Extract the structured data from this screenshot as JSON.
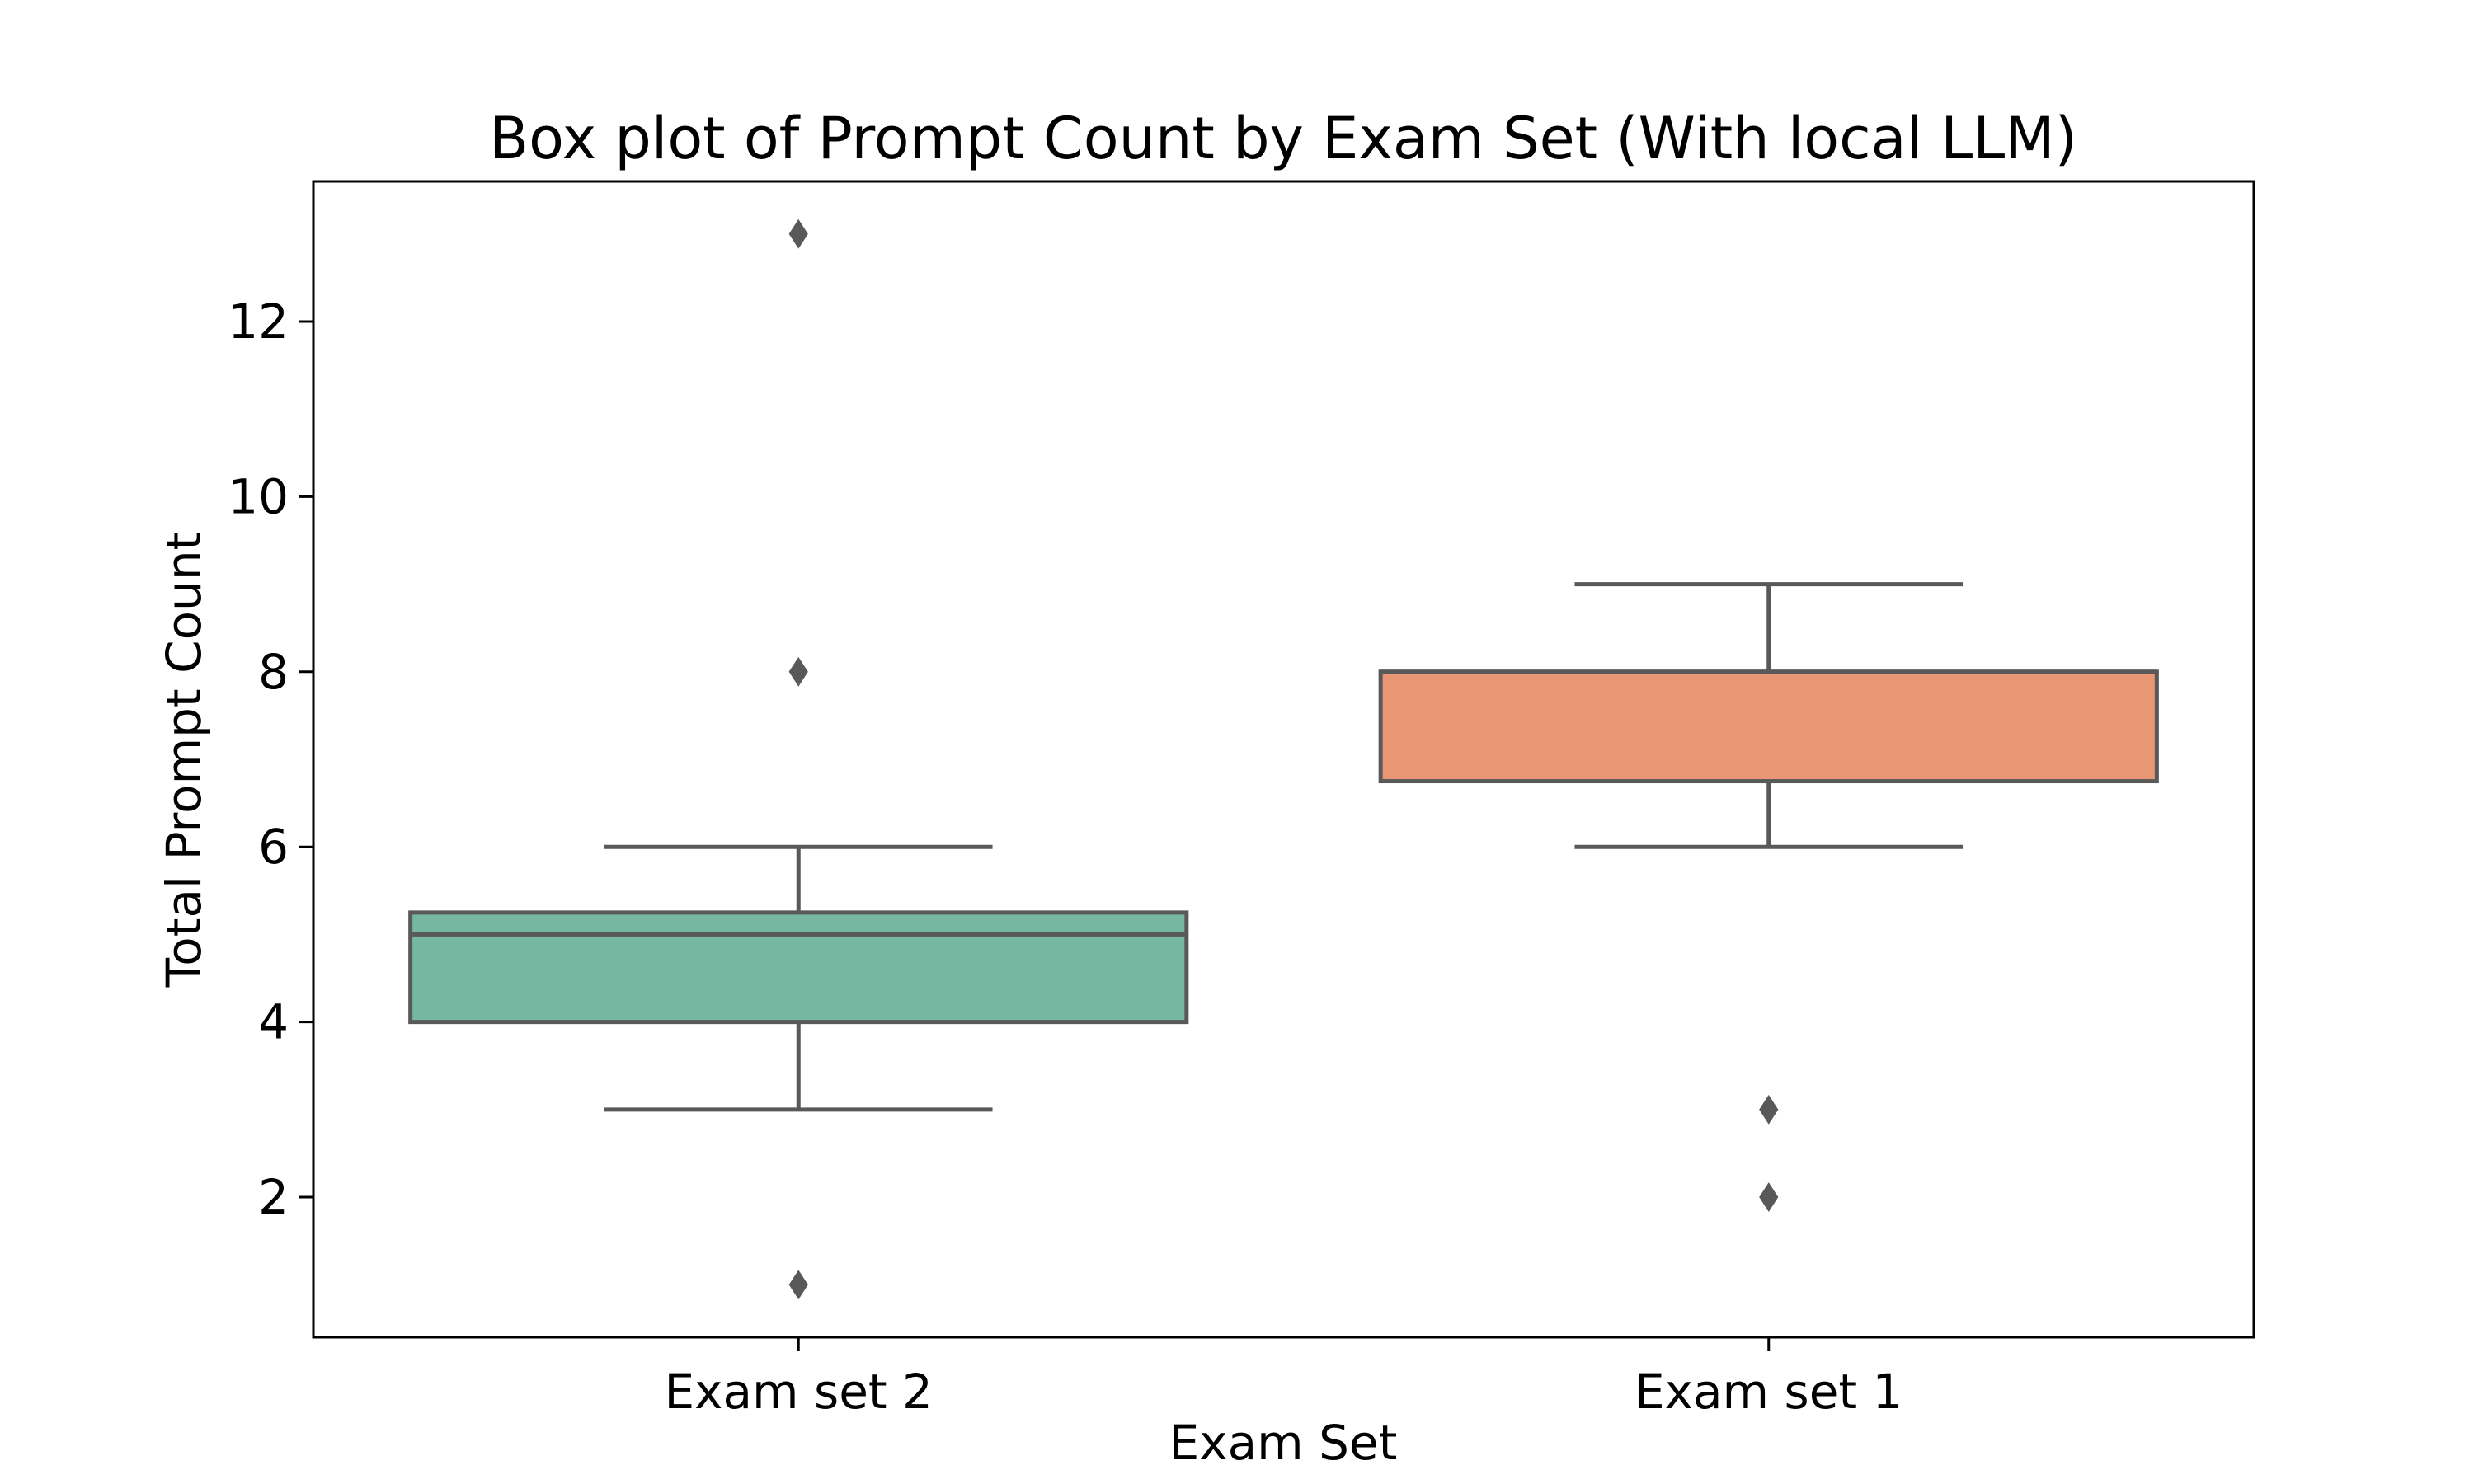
{
  "chart_data": {
    "type": "box",
    "title": "Box plot of Prompt Count by Exam Set (With local LLM)",
    "xlabel": "Exam Set",
    "ylabel": "Total Prompt Count",
    "ylim": [
      0.4,
      13.6
    ],
    "yticks": [
      2,
      4,
      6,
      8,
      10,
      12
    ],
    "yticks_labels": [
      "2",
      "4",
      "6",
      "8",
      "10",
      "12"
    ],
    "grid": false,
    "legend": "none",
    "categories": [
      "Exam set 2",
      "Exam set 1"
    ],
    "boxes": [
      {
        "category": "Exam set 2",
        "color": "#76b7a2",
        "whisker_low": 3,
        "q1": 4,
        "median": 5,
        "q3": 5.25,
        "whisker_high": 6,
        "outliers": [
          13,
          8,
          1
        ]
      },
      {
        "category": "Exam set 1",
        "color": "#e99675",
        "whisker_low": 6,
        "q1": 6.75,
        "median": 8,
        "q3": 8,
        "whisker_high": 9,
        "outliers": [
          3,
          2
        ]
      }
    ],
    "line_color": "#595959"
  }
}
